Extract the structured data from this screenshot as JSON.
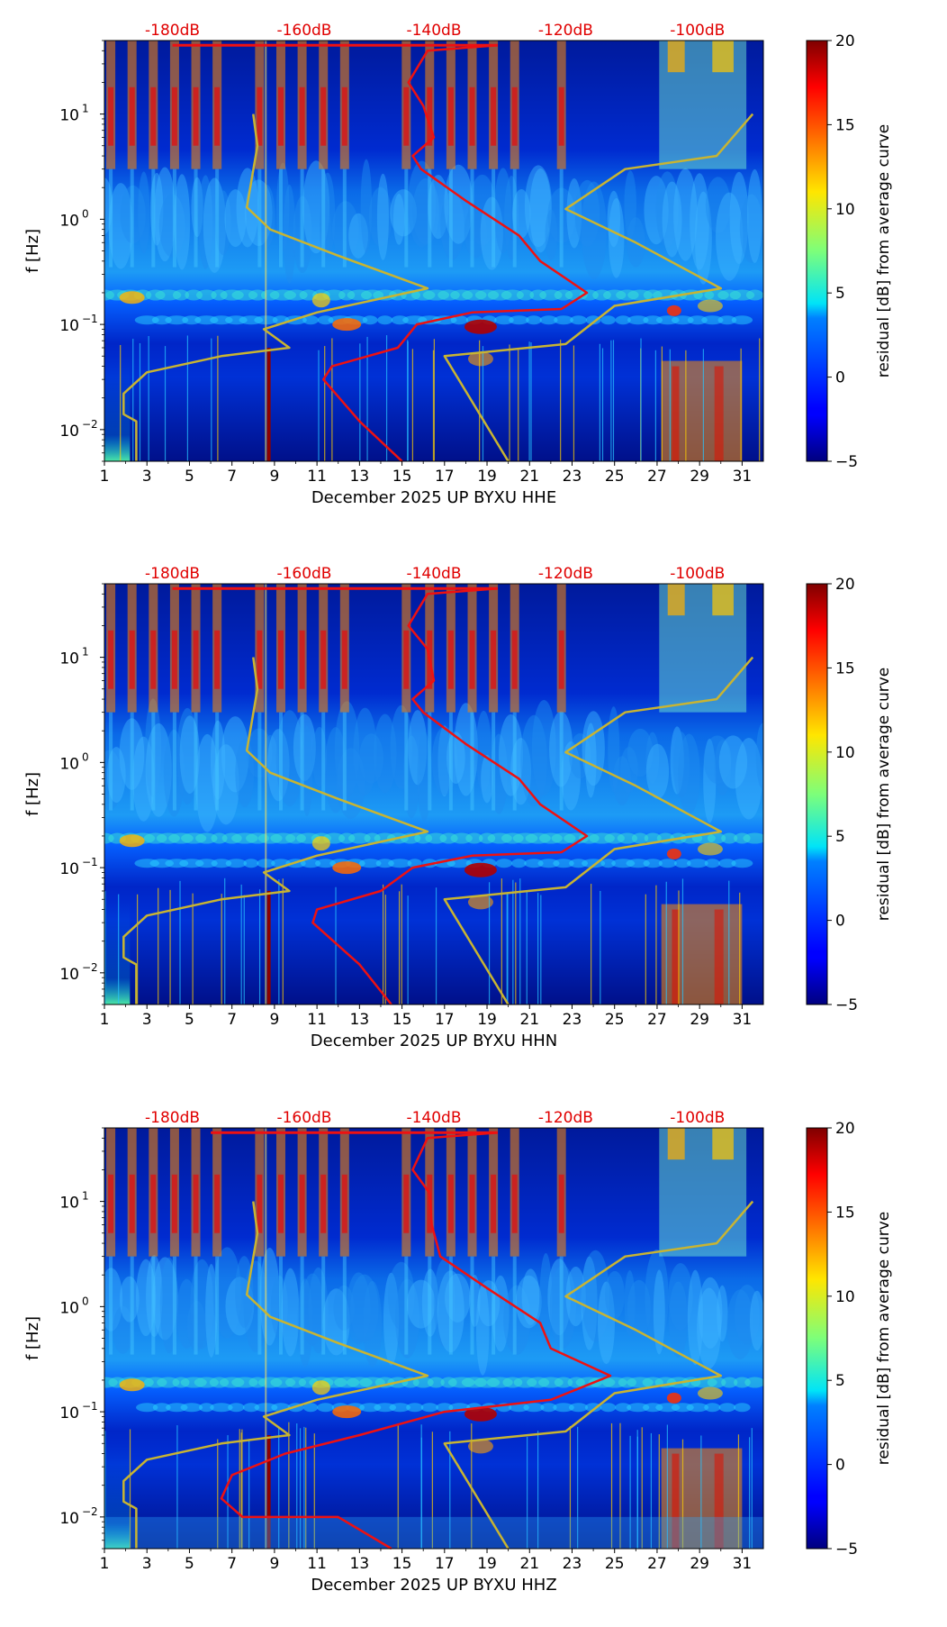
{
  "chart_data": [
    {
      "type": "heatmap",
      "title": "",
      "xlabel": "December 2025 UP BYXU  HHE",
      "ylabel": "f [Hz]",
      "xlim": [
        1,
        32
      ],
      "ylim": [
        0.005,
        50
      ],
      "x_ticks": [
        1,
        3,
        5,
        7,
        9,
        11,
        13,
        15,
        17,
        19,
        21,
        23,
        25,
        27,
        29,
        31
      ],
      "y_ticks": [
        {
          "value": 0.01,
          "base": "10",
          "exp": "−2"
        },
        {
          "value": 0.1,
          "base": "10",
          "exp": "−1"
        },
        {
          "value": 1,
          "base": "10",
          "exp": "0"
        },
        {
          "value": 10,
          "base": "10",
          "exp": "1"
        }
      ],
      "db_scale_labels": [
        {
          "x": 4.2,
          "label": "-180dB"
        },
        {
          "x": 10.4,
          "label": "-160dB"
        },
        {
          "x": 16.5,
          "label": "-140dB"
        },
        {
          "x": 22.7,
          "label": "-120dB"
        },
        {
          "x": 28.9,
          "label": "-100dB"
        }
      ],
      "colorbar": {
        "label": "residual [dB] from average curve",
        "min": -5,
        "max": 20,
        "ticks": [
          "−5",
          "0",
          "5",
          "10",
          "15",
          "20"
        ]
      },
      "series": [
        {
          "name": "red median curve",
          "color": "#ee1111",
          "x": [
            19.5,
            16.2,
            15.3,
            16.0,
            16.5,
            15.5,
            15.9,
            18.0,
            20.5,
            21.5,
            23.7,
            22.5,
            18.3,
            15.7,
            14.8,
            11.7,
            11.3,
            13.0,
            15.0
          ],
          "y": [
            45,
            40,
            20,
            12,
            6,
            4,
            3,
            1.5,
            0.7,
            0.4,
            0.2,
            0.14,
            0.13,
            0.1,
            0.06,
            0.04,
            0.03,
            0.012,
            0.005
          ]
        },
        {
          "name": "yellow NLNM",
          "color": "#c8b432",
          "x": [
            8.0,
            8.2,
            7.7,
            8.8,
            12.0,
            16.2,
            11.0,
            8.5,
            9.7,
            6.5,
            3.0,
            1.9,
            1.9,
            2.5,
            2.5
          ],
          "y": [
            10,
            5,
            1.3,
            0.8,
            0.45,
            0.22,
            0.13,
            0.09,
            0.06,
            0.05,
            0.035,
            0.022,
            0.014,
            0.012,
            0.005
          ]
        },
        {
          "name": "yellow NHNM",
          "color": "#c8b432",
          "x": [
            31.5,
            29.8,
            25.5,
            22.7,
            26.0,
            30.0,
            25.0,
            22.7,
            17.0,
            20.0
          ],
          "y": [
            10,
            4,
            3,
            1.25,
            0.6,
            0.22,
            0.15,
            0.065,
            0.05,
            0.005
          ]
        },
        {
          "name": "red top segment",
          "color": "#ee1111",
          "x": [
            4.2,
            19.5
          ],
          "y": [
            45,
            45
          ]
        }
      ]
    },
    {
      "type": "heatmap",
      "title": "",
      "xlabel": "December 2025 UP BYXU  HHN",
      "ylabel": "f [Hz]",
      "xlim": [
        1,
        32
      ],
      "ylim": [
        0.005,
        50
      ],
      "x_ticks": [
        1,
        3,
        5,
        7,
        9,
        11,
        13,
        15,
        17,
        19,
        21,
        23,
        25,
        27,
        29,
        31
      ],
      "y_ticks": [
        {
          "value": 0.01,
          "base": "10",
          "exp": "−2"
        },
        {
          "value": 0.1,
          "base": "10",
          "exp": "−1"
        },
        {
          "value": 1,
          "base": "10",
          "exp": "0"
        },
        {
          "value": 10,
          "base": "10",
          "exp": "1"
        }
      ],
      "db_scale_labels": [
        {
          "x": 4.2,
          "label": "-180dB"
        },
        {
          "x": 10.4,
          "label": "-160dB"
        },
        {
          "x": 16.5,
          "label": "-140dB"
        },
        {
          "x": 22.7,
          "label": "-120dB"
        },
        {
          "x": 28.9,
          "label": "-100dB"
        }
      ],
      "colorbar": {
        "label": "residual [dB] from average curve",
        "min": -5,
        "max": 20,
        "ticks": [
          "−5",
          "0",
          "5",
          "10",
          "15",
          "20"
        ]
      },
      "series": [
        {
          "name": "red median curve",
          "color": "#ee1111",
          "x": [
            19.5,
            16.2,
            15.3,
            16.2,
            16.5,
            15.5,
            16.0,
            18.0,
            20.5,
            21.5,
            23.7,
            22.5,
            18.3,
            15.5,
            14.0,
            11.0,
            10.8,
            13.0,
            14.5
          ],
          "y": [
            45,
            40,
            20,
            12,
            6,
            4,
            3,
            1.5,
            0.7,
            0.4,
            0.2,
            0.14,
            0.13,
            0.1,
            0.06,
            0.04,
            0.03,
            0.012,
            0.005
          ]
        },
        {
          "name": "yellow NLNM",
          "color": "#c8b432",
          "x": [
            8.0,
            8.2,
            7.7,
            8.8,
            12.0,
            16.2,
            11.0,
            8.5,
            9.7,
            6.5,
            3.0,
            1.9,
            1.9,
            2.5,
            2.5
          ],
          "y": [
            10,
            5,
            1.3,
            0.8,
            0.45,
            0.22,
            0.13,
            0.09,
            0.06,
            0.05,
            0.035,
            0.022,
            0.014,
            0.012,
            0.005
          ]
        },
        {
          "name": "yellow NHNM",
          "color": "#c8b432",
          "x": [
            31.5,
            29.8,
            25.5,
            22.7,
            26.0,
            30.0,
            25.0,
            22.7,
            17.0,
            20.0
          ],
          "y": [
            10,
            4,
            3,
            1.25,
            0.6,
            0.22,
            0.15,
            0.065,
            0.05,
            0.005
          ]
        },
        {
          "name": "red top segment",
          "color": "#ee1111",
          "x": [
            4.2,
            19.5
          ],
          "y": [
            45,
            45
          ]
        }
      ]
    },
    {
      "type": "heatmap",
      "title": "",
      "xlabel": "December 2025 UP BYXU  HHZ",
      "ylabel": "f [Hz]",
      "xlim": [
        1,
        32
      ],
      "ylim": [
        0.005,
        50
      ],
      "x_ticks": [
        1,
        3,
        5,
        7,
        9,
        11,
        13,
        15,
        17,
        19,
        21,
        23,
        25,
        27,
        29,
        31
      ],
      "y_ticks": [
        {
          "value": 0.01,
          "base": "10",
          "exp": "−2"
        },
        {
          "value": 0.1,
          "base": "10",
          "exp": "−1"
        },
        {
          "value": 1,
          "base": "10",
          "exp": "0"
        },
        {
          "value": 10,
          "base": "10",
          "exp": "1"
        }
      ],
      "db_scale_labels": [
        {
          "x": 4.2,
          "label": "-180dB"
        },
        {
          "x": 10.4,
          "label": "-160dB"
        },
        {
          "x": 16.5,
          "label": "-140dB"
        },
        {
          "x": 22.7,
          "label": "-120dB"
        },
        {
          "x": 28.9,
          "label": "-100dB"
        }
      ],
      "colorbar": {
        "label": "residual [dB] from average curve",
        "min": -5,
        "max": 20,
        "ticks": [
          "−5",
          "0",
          "5",
          "10",
          "15",
          "20"
        ]
      },
      "series": [
        {
          "name": "red median curve",
          "color": "#ee1111",
          "x": [
            19.5,
            16.2,
            15.5,
            16.3,
            16.4,
            16.8,
            19.0,
            21.5,
            22.0,
            24.8,
            22.0,
            17.0,
            13.0,
            9.5,
            7.0,
            6.5,
            7.5,
            12.0,
            14.5
          ],
          "y": [
            45,
            40,
            20,
            12,
            6,
            3,
            1.5,
            0.7,
            0.4,
            0.22,
            0.13,
            0.1,
            0.06,
            0.04,
            0.025,
            0.015,
            0.01,
            0.01,
            0.005
          ]
        },
        {
          "name": "yellow NLNM",
          "color": "#c8b432",
          "x": [
            8.0,
            8.2,
            7.7,
            8.8,
            12.0,
            16.2,
            11.0,
            8.5,
            9.7,
            6.5,
            3.0,
            1.9,
            1.9,
            2.5,
            2.5
          ],
          "y": [
            10,
            5,
            1.3,
            0.8,
            0.45,
            0.22,
            0.13,
            0.09,
            0.06,
            0.05,
            0.035,
            0.022,
            0.014,
            0.012,
            0.005
          ]
        },
        {
          "name": "yellow NHNM",
          "color": "#c8b432",
          "x": [
            31.5,
            29.8,
            25.5,
            22.7,
            26.0,
            30.0,
            25.0,
            22.7,
            17.0,
            20.0
          ],
          "y": [
            10,
            4,
            3,
            1.25,
            0.6,
            0.22,
            0.15,
            0.065,
            0.05,
            0.005
          ]
        },
        {
          "name": "red top segment",
          "color": "#ee1111",
          "x": [
            6.0,
            19.5
          ],
          "y": [
            45,
            45
          ]
        }
      ]
    }
  ]
}
